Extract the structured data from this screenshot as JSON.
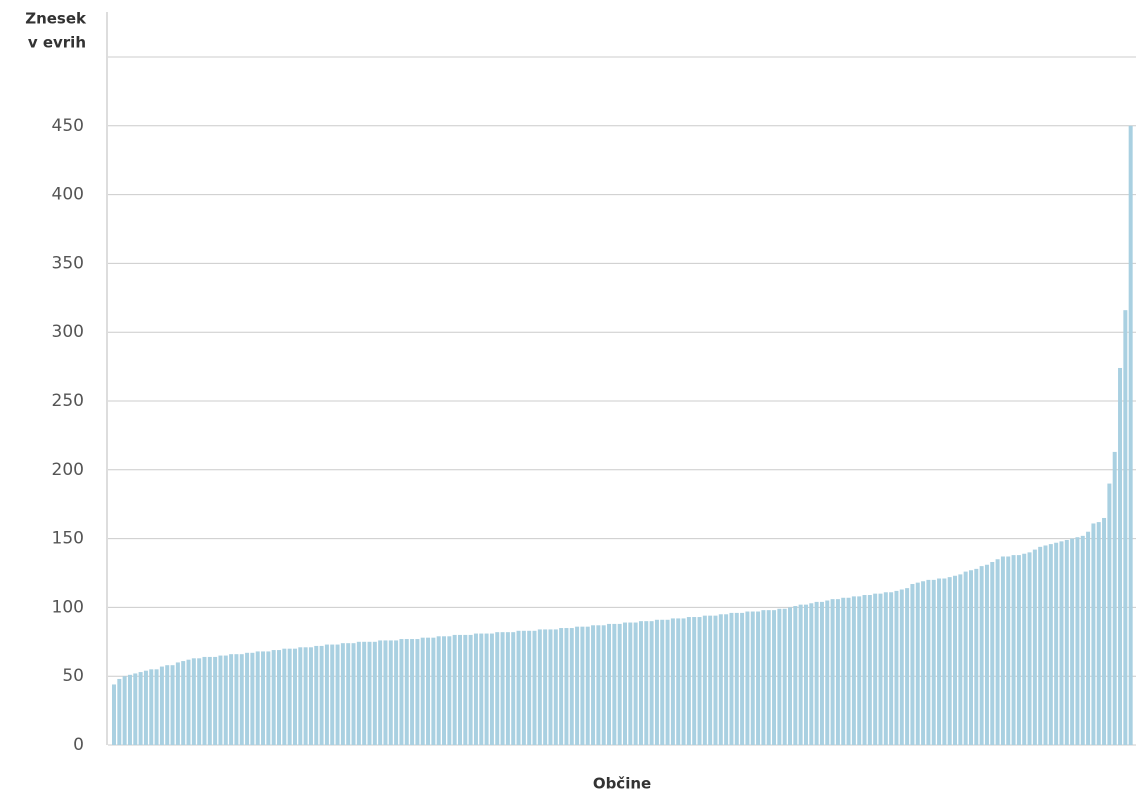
{
  "chart_data": {
    "type": "bar",
    "y_label": [
      "Znesek",
      "v evrih"
    ],
    "x_label": "Občine",
    "color": "#a9d0e1",
    "ylim": [
      0,
      500
    ],
    "yticks": [
      0,
      50,
      100,
      150,
      200,
      250,
      300,
      350,
      400,
      450
    ],
    "grid": true,
    "values": [
      44,
      48,
      50,
      51,
      52,
      53,
      54,
      55,
      55,
      57,
      58,
      58,
      60,
      61,
      62,
      63,
      63,
      64,
      64,
      64,
      65,
      65,
      66,
      66,
      66,
      67,
      67,
      68,
      68,
      68,
      69,
      69,
      70,
      70,
      70,
      71,
      71,
      71,
      72,
      72,
      73,
      73,
      73,
      74,
      74,
      74,
      75,
      75,
      75,
      75,
      76,
      76,
      76,
      76,
      77,
      77,
      77,
      77,
      78,
      78,
      78,
      79,
      79,
      79,
      80,
      80,
      80,
      80,
      81,
      81,
      81,
      81,
      82,
      82,
      82,
      82,
      83,
      83,
      83,
      83,
      84,
      84,
      84,
      84,
      85,
      85,
      85,
      86,
      86,
      86,
      87,
      87,
      87,
      88,
      88,
      88,
      89,
      89,
      89,
      90,
      90,
      90,
      91,
      91,
      91,
      92,
      92,
      92,
      93,
      93,
      93,
      94,
      94,
      94,
      95,
      95,
      96,
      96,
      96,
      97,
      97,
      97,
      98,
      98,
      98,
      99,
      99,
      100,
      101,
      102,
      102,
      103,
      104,
      104,
      105,
      106,
      106,
      107,
      107,
      108,
      108,
      109,
      109,
      110,
      110,
      111,
      111,
      112,
      113,
      114,
      117,
      118,
      119,
      120,
      120,
      121,
      121,
      122,
      123,
      124,
      126,
      127,
      128,
      130,
      131,
      133,
      135,
      137,
      137,
      138,
      138,
      139,
      140,
      142,
      144,
      145,
      146,
      147,
      148,
      149,
      150,
      151,
      152,
      155,
      161,
      162,
      165,
      190,
      213,
      274,
      316,
      450
    ]
  }
}
